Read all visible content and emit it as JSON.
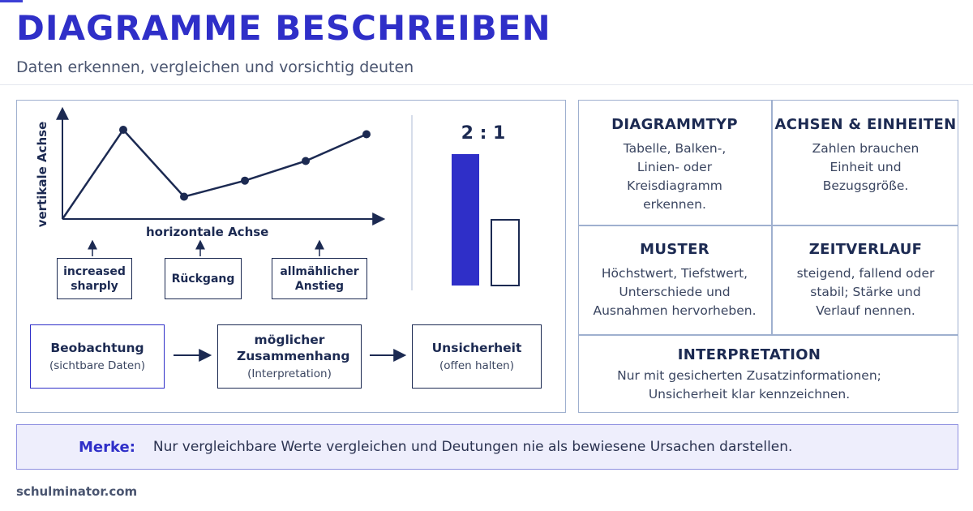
{
  "header": {
    "title": "DIAGRAMME BESCHREIBEN",
    "subtitle": "Daten erkennen, vergleichen und vorsichtig deuten"
  },
  "line_diagram": {
    "y_axis_label": "vertikale Achse",
    "x_axis_label": "horizontale Achse",
    "points": [
      [
        0,
        0
      ],
      [
        1,
        10
      ],
      [
        2,
        2.5
      ],
      [
        3,
        4.3
      ],
      [
        4,
        6.5
      ],
      [
        5,
        9.5
      ]
    ],
    "callouts": [
      {
        "label": "increased sharply"
      },
      {
        "label": "Rückgang"
      },
      {
        "label": "allmählicher Anstieg"
      }
    ]
  },
  "ratio_diagram": {
    "label": "2 : 1",
    "bars": [
      {
        "value": 2,
        "color": "#2f2fc8",
        "filled": true
      },
      {
        "value": 1,
        "color": "#1c2a52",
        "filled": false
      }
    ]
  },
  "flow": [
    {
      "title": "Beobachtung",
      "subtitle": "(sichtbare Daten)"
    },
    {
      "title": "möglicher Zusammenhang",
      "subtitle": "(Interpretation)"
    },
    {
      "title": "Unsicherheit",
      "subtitle": "(offen halten)"
    }
  ],
  "cells": {
    "diagrammtyp": {
      "title": "DIAGRAMMTYP",
      "body": "Tabelle, Balken-, Linien- oder Kreisdiagramm erkennen."
    },
    "achsen": {
      "title": "ACHSEN & EINHEITEN",
      "body": "Zahlen brauchen Einheit und Bezugsgröße."
    },
    "muster": {
      "title": "MUSTER",
      "body": "Höchstwert, Tiefstwert, Unterschiede und Ausnahmen hervorheben."
    },
    "zeitverlauf": {
      "title": "ZEITVERLAUF",
      "body": "steigend, fallend oder stabil; Stärke und Verlauf nennen."
    },
    "interpretation": {
      "title": "INTERPRETATION",
      "body": "Nur mit gesicherten Zusatzinformationen; Unsicherheit klar kennzeichnen."
    }
  },
  "merke": {
    "label": "Merke:",
    "text": "Nur vergleichbare Werte vergleichen und Deutungen nie als bewiesene Ursachen darstellen."
  },
  "footer": {
    "text": "schulminator.com"
  },
  "colors": {
    "accent": "#2f2fc8",
    "ink": "#1c2a52",
    "border": "#9fb0cf",
    "merke_bg": "#eeeefc"
  }
}
